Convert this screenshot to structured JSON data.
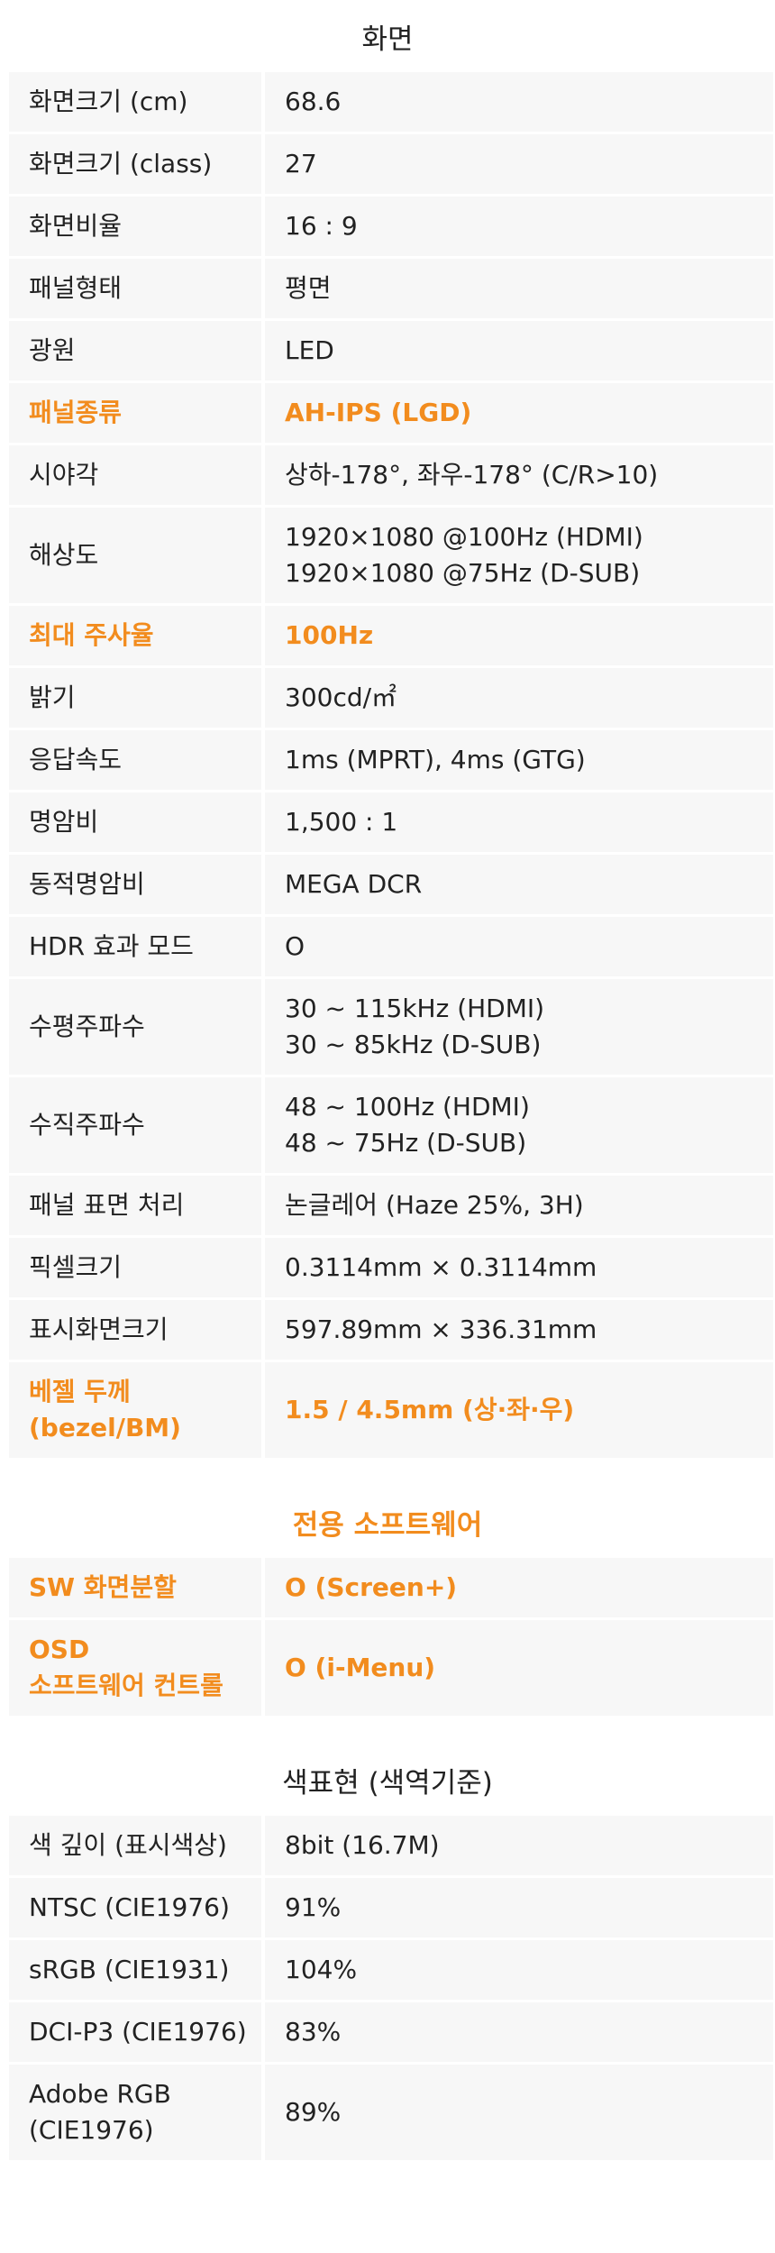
{
  "sections": [
    {
      "title": "화면",
      "accent": false,
      "rows": [
        {
          "label": "화면크기 (cm)",
          "value": "68.6",
          "highlight": false
        },
        {
          "label": "화면크기 (class)",
          "value": "27",
          "highlight": false
        },
        {
          "label": "화면비율",
          "value": "16 : 9",
          "highlight": false
        },
        {
          "label": "패널형태",
          "value": "평면",
          "highlight": false
        },
        {
          "label": "광원",
          "value": "LED",
          "highlight": false
        },
        {
          "label": "패널종류",
          "value": "AH-IPS (LGD)",
          "highlight": true
        },
        {
          "label": "시야각",
          "value": "상하-178°, 좌우-178°  (C/R>10)",
          "highlight": false
        },
        {
          "label": "해상도",
          "value": "1920×1080 @100Hz (HDMI)\n1920×1080 @75Hz (D-SUB)",
          "highlight": false
        },
        {
          "label": "최대 주사율",
          "value": "100Hz",
          "highlight": true
        },
        {
          "label": "밝기",
          "value": "300cd/㎡",
          "highlight": false
        },
        {
          "label": "응답속도",
          "value": "1ms (MPRT), 4ms (GTG)",
          "highlight": false
        },
        {
          "label": "명암비",
          "value": "1,500 : 1",
          "highlight": false
        },
        {
          "label": "동적명암비",
          "value": "MEGA DCR",
          "highlight": false
        },
        {
          "label": "HDR 효과 모드",
          "value": "O",
          "highlight": false
        },
        {
          "label": "수평주파수",
          "value": "30 ~ 115kHz (HDMI)\n30 ~ 85kHz (D-SUB)",
          "highlight": false
        },
        {
          "label": "수직주파수",
          "value": "48 ~ 100Hz (HDMI)\n48 ~ 75Hz (D-SUB)",
          "highlight": false
        },
        {
          "label": "패널 표면 처리",
          "value": "논글레어 (Haze 25%, 3H)",
          "highlight": false
        },
        {
          "label": "픽셀크기",
          "value": "0.3114mm × 0.3114mm",
          "highlight": false
        },
        {
          "label": "표시화면크기",
          "value": "597.89mm × 336.31mm",
          "highlight": false
        },
        {
          "label": "베젤 두께\n(bezel/BM)",
          "value": "1.5 / 4.5mm (상·좌·우)",
          "highlight": true
        }
      ]
    },
    {
      "title": "전용 소프트웨어",
      "accent": true,
      "rows": [
        {
          "label": "SW 화면분할",
          "value": "O (Screen+)",
          "highlight": true
        },
        {
          "label": "OSD\n소프트웨어 컨트롤",
          "value": "O (i-Menu)",
          "highlight": true
        }
      ]
    },
    {
      "title": "색표현 (색역기준)",
      "accent": false,
      "rows": [
        {
          "label": "색 깊이 (표시색상)",
          "value": "8bit (16.7M)",
          "highlight": false
        },
        {
          "label": "NTSC (CIE1976)",
          "value": "91%",
          "highlight": false
        },
        {
          "label": "sRGB (CIE1931)",
          "value": "104%",
          "highlight": false
        },
        {
          "label": "DCI-P3 (CIE1976)",
          "value": "83%",
          "highlight": false
        },
        {
          "label": "Adobe RGB\n(CIE1976)",
          "value": "89%",
          "highlight": false
        }
      ]
    }
  ],
  "colors": {
    "accent": "#f28c1e",
    "row_background": "#f7f7f7",
    "text": "#222222"
  }
}
